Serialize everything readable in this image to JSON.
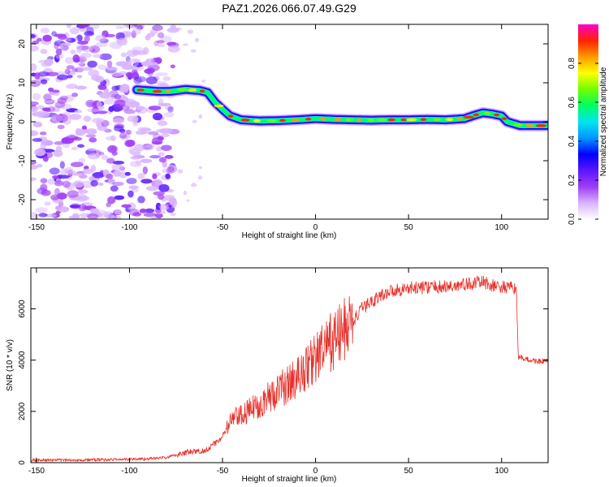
{
  "title": "PAZ1.2026.066.07.49.G29",
  "colors": {
    "snr_line": "#e8302a",
    "colormap": [
      "#ffffff",
      "#d9b3ff",
      "#9f3cf5",
      "#5a16ff",
      "#0000ff",
      "#0096ff",
      "#00e5ee",
      "#00ff60",
      "#70ff00",
      "#ffff00",
      "#ff9900",
      "#ff2200",
      "#ff00cc"
    ]
  },
  "chart_data": [
    {
      "type": "heatmap",
      "name": "spectrogram",
      "xlabel": "Height of straight line (km)",
      "ylabel": "Frequency (Hz)",
      "xlim": [
        -153,
        125
      ],
      "ylim": [
        -25,
        25
      ],
      "xticks": [
        -150,
        -100,
        -50,
        0,
        50,
        100
      ],
      "yticks": [
        -20,
        -10,
        0,
        10,
        20
      ],
      "noise_region_x": [
        -153,
        -80
      ],
      "ridge": {
        "x": [
          -96,
          -85,
          -78,
          -70,
          -62,
          -58,
          -54,
          -50,
          -46,
          -40,
          -30,
          -20,
          -10,
          0,
          10,
          20,
          30,
          40,
          50,
          60,
          70,
          80,
          85,
          90,
          95,
          100,
          103,
          110,
          125
        ],
        "freq": [
          8.2,
          7.8,
          7.8,
          8.3,
          8.0,
          7.5,
          5.0,
          3.2,
          1.5,
          0.5,
          0.2,
          0.3,
          0.5,
          0.8,
          0.6,
          0.5,
          0.4,
          0.5,
          0.5,
          0.6,
          0.5,
          0.8,
          1.6,
          2.3,
          2.0,
          1.5,
          0.0,
          -1.0,
          -1.0
        ]
      },
      "colorbar": {
        "label": "Normalized spectral amplitude",
        "ticks": [
          0.0,
          0.2,
          0.4,
          0.6,
          0.8
        ],
        "tick_labels": [
          "0.0",
          "0.2",
          "0.4",
          "0.6",
          "0.8"
        ],
        "range": [
          0,
          1
        ]
      }
    },
    {
      "type": "line",
      "name": "snr",
      "xlabel": "Height of straight line (km)",
      "ylabel": "SNR (10 * v/v)",
      "xlim": [
        -153,
        125
      ],
      "ylim": [
        0,
        7600
      ],
      "xticks": [
        -150,
        -100,
        -50,
        0,
        50,
        100
      ],
      "yticks": [
        0,
        2000,
        4000,
        6000
      ],
      "series": [
        {
          "name": "SNR",
          "x": [
            -153,
            -130,
            -110,
            -90,
            -80,
            -75,
            -70,
            -60,
            -55,
            -50,
            -45,
            -40,
            -30,
            -20,
            -10,
            0,
            10,
            20,
            25,
            30,
            40,
            50,
            60,
            70,
            80,
            85,
            90,
            95,
            100,
            105,
            108,
            109,
            110,
            115,
            120,
            125
          ],
          "y": [
            100,
            100,
            120,
            150,
            200,
            300,
            400,
            450,
            700,
            1000,
            1700,
            1800,
            2300,
            2800,
            3300,
            4100,
            4800,
            5500,
            6000,
            6300,
            6700,
            6800,
            6850,
            6850,
            6950,
            7000,
            7050,
            6900,
            6850,
            6800,
            6800,
            4050,
            4100,
            4000,
            3950,
            3950
          ]
        }
      ]
    }
  ]
}
